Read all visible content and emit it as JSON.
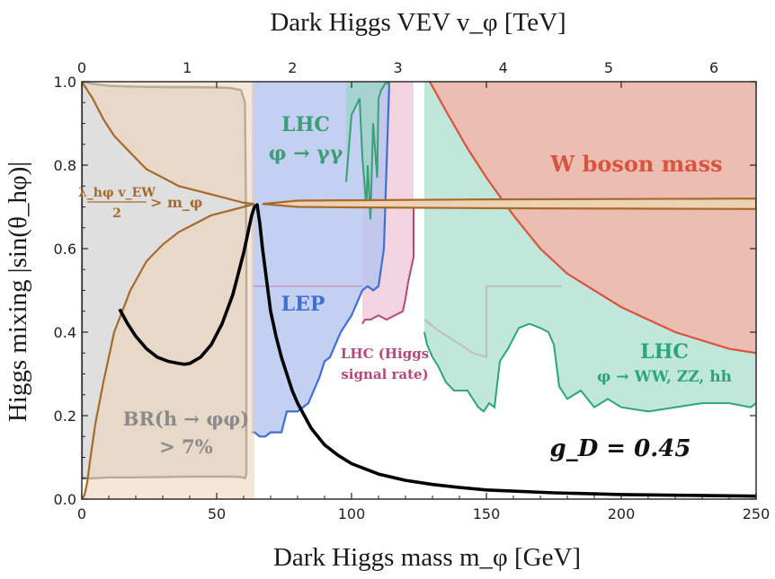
{
  "chart_data": {
    "type": "area",
    "title": "",
    "xlabel": "Dark Higgs mass m_φ [GeV]",
    "ylabel": "Higgs mixing |sin(θ_hφ)|",
    "top_xlabel": "Dark Higgs VEV v_φ [TeV]",
    "xlim": [
      0,
      250
    ],
    "ylim": [
      0,
      1
    ],
    "top_xlim": [
      0,
      6.4
    ],
    "x_ticks": [
      "0",
      "50",
      "100",
      "150",
      "200",
      "250"
    ],
    "x_tick_values": [
      0,
      50,
      100,
      150,
      200,
      250
    ],
    "y_ticks": [
      "0.0",
      "0.2",
      "0.4",
      "0.6",
      "0.8",
      "1.0"
    ],
    "y_tick_values": [
      0,
      0.2,
      0.4,
      0.6,
      0.8,
      1.0
    ],
    "top_ticks": [
      "0",
      "1",
      "2",
      "3",
      "4",
      "5",
      "6"
    ],
    "top_tick_values": [
      0,
      1,
      2,
      3,
      4,
      5,
      6
    ],
    "grid": false,
    "annotation": "g_D = 0.45",
    "regions": [
      {
        "name": "LHC φ → γγ",
        "label": [
          "LHC",
          "φ → γγ"
        ],
        "color": "#3a9e77",
        "fill": "#9ad7c3",
        "x": [
          98,
          100,
          103,
          104,
          105.5,
          106,
          107,
          108,
          109.5,
          110,
          111,
          112,
          113,
          114,
          114
        ],
        "y": [
          0.76,
          0.92,
          0.96,
          0.82,
          0.7,
          0.8,
          0.67,
          0.9,
          0.77,
          0.96,
          0.98,
          0.99,
          1.0,
          0.99,
          1.0
        ]
      },
      {
        "name": "W boson mass",
        "label": [
          "W boson mass"
        ],
        "color": "#d9533f",
        "fill": "#f1b9ad",
        "x": [
          129,
          135,
          143,
          150,
          160,
          170,
          180,
          200,
          220,
          240,
          250
        ],
        "y": [
          1.0,
          0.93,
          0.84,
          0.77,
          0.68,
          0.6,
          0.54,
          0.46,
          0.4,
          0.36,
          0.35
        ]
      },
      {
        "name": "LEP",
        "label": [
          "LEP"
        ],
        "color": "#3e6fd1",
        "fill": "#b4c4ef",
        "x": [
          63,
          64,
          66,
          68,
          70,
          72,
          74,
          76,
          78,
          80,
          82,
          84,
          86,
          88,
          89,
          90,
          92,
          94,
          96,
          98,
          100,
          102,
          104,
          106,
          108,
          110,
          112,
          113,
          114
        ],
        "y": [
          0.16,
          0.16,
          0.15,
          0.15,
          0.16,
          0.16,
          0.16,
          0.21,
          0.21,
          0.21,
          0.22,
          0.23,
          0.26,
          0.29,
          0.31,
          0.33,
          0.34,
          0.37,
          0.4,
          0.42,
          0.44,
          0.47,
          0.5,
          0.51,
          0.5,
          0.51,
          0.6,
          0.8,
          1.0
        ]
      },
      {
        "name": "LHC (Higgs signal rate)",
        "label": [
          "LHC (Higgs",
          "signal rate)"
        ],
        "color": "#b5477c",
        "fill": "#eec6d6",
        "x": [
          104,
          105,
          107,
          110,
          113,
          116,
          119,
          120,
          121,
          122,
          123,
          123
        ],
        "y": [
          0.42,
          0.43,
          0.43,
          0.44,
          0.43,
          0.44,
          0.45,
          0.48,
          0.52,
          0.55,
          0.58,
          0.7
        ]
      },
      {
        "name": "LHC φ → WW, ZZ, hh",
        "label": [
          "LHC",
          "φ → WW, ZZ, hh"
        ],
        "color": "#2aa57e",
        "fill": "#b6e3d3",
        "x": [
          127,
          128,
          130,
          132,
          135,
          138,
          141,
          143,
          145,
          147,
          149,
          151,
          153,
          155,
          158,
          162,
          166,
          170,
          173,
          175,
          177,
          180,
          185,
          190,
          195,
          200,
          210,
          220,
          230,
          240,
          248,
          250
        ],
        "y": [
          0.4,
          0.37,
          0.34,
          0.32,
          0.28,
          0.26,
          0.26,
          0.26,
          0.24,
          0.22,
          0.21,
          0.23,
          0.22,
          0.33,
          0.36,
          0.41,
          0.42,
          0.41,
          0.4,
          0.37,
          0.27,
          0.24,
          0.26,
          0.22,
          0.24,
          0.22,
          0.21,
          0.22,
          0.23,
          0.23,
          0.22,
          0.23
        ]
      },
      {
        "name": "BR(h → φφ) > 7%",
        "label": [
          "BR(h → φφ)",
          "> 7%"
        ],
        "color": "#7a7a7a",
        "fill": "#dcdcdc",
        "x": [
          0,
          4,
          10,
          20,
          30,
          40,
          50,
          55,
          59,
          60.5,
          61,
          61,
          60.5,
          59,
          55,
          50,
          40,
          30,
          20,
          10,
          4,
          0
        ],
        "y": [
          1.0,
          0.995,
          0.99,
          0.988,
          0.987,
          0.987,
          0.986,
          0.985,
          0.98,
          0.95,
          0.6,
          0.06,
          0.05,
          0.053,
          0.054,
          0.054,
          0.054,
          0.053,
          0.052,
          0.052,
          0.05,
          0.05
        ]
      },
      {
        "name": "λ_hφ v_EW / 2 > m_φ",
        "label": [
          "λ_hφ v_EW",
          "2",
          "> m_φ"
        ],
        "color": "#a66a2b",
        "fill": "#eed2b4",
        "upper_x": [
          0,
          4,
          8,
          12,
          18,
          24,
          30,
          36,
          42,
          48,
          54,
          60,
          64
        ],
        "upper_y": [
          1.0,
          0.96,
          0.91,
          0.87,
          0.83,
          0.79,
          0.77,
          0.75,
          0.74,
          0.73,
          0.72,
          0.71,
          0.707
        ],
        "lower_x": [
          0,
          1,
          2,
          3,
          5,
          8,
          12,
          18,
          24,
          30,
          36,
          42,
          48,
          54,
          60,
          64
        ],
        "lower_y": [
          0.0,
          0.01,
          0.04,
          0.09,
          0.18,
          0.28,
          0.4,
          0.5,
          0.57,
          0.61,
          0.64,
          0.66,
          0.68,
          0.69,
          0.7,
          0.707
        ],
        "band_x": [
          67,
          80,
          100,
          150,
          200,
          250
        ],
        "band_upper": [
          0.707,
          0.715,
          0.716,
          0.718,
          0.719,
          0.72
        ],
        "band_lower": [
          0.707,
          0.7,
          0.699,
          0.697,
          0.696,
          0.695
        ]
      }
    ],
    "series": [
      {
        "name": "g_D = 0.45 contour",
        "color": "#000000",
        "x": [
          14,
          17,
          20,
          24,
          28,
          32,
          36,
          38,
          40,
          44,
          48,
          52,
          56,
          58,
          60,
          62,
          63,
          64,
          65,
          66,
          67,
          68,
          69,
          70,
          72,
          74,
          76,
          78,
          80,
          85,
          90,
          95,
          100,
          110,
          120,
          130,
          140,
          150,
          175,
          200,
          225,
          250
        ],
        "y": [
          0.455,
          0.42,
          0.39,
          0.36,
          0.34,
          0.33,
          0.325,
          0.323,
          0.325,
          0.34,
          0.37,
          0.42,
          0.49,
          0.54,
          0.59,
          0.65,
          0.68,
          0.7,
          0.705,
          0.66,
          0.6,
          0.55,
          0.5,
          0.45,
          0.39,
          0.34,
          0.3,
          0.26,
          0.23,
          0.17,
          0.13,
          0.105,
          0.085,
          0.06,
          0.045,
          0.035,
          0.028,
          0.022,
          0.015,
          0.011,
          0.009,
          0.007
        ]
      }
    ]
  }
}
